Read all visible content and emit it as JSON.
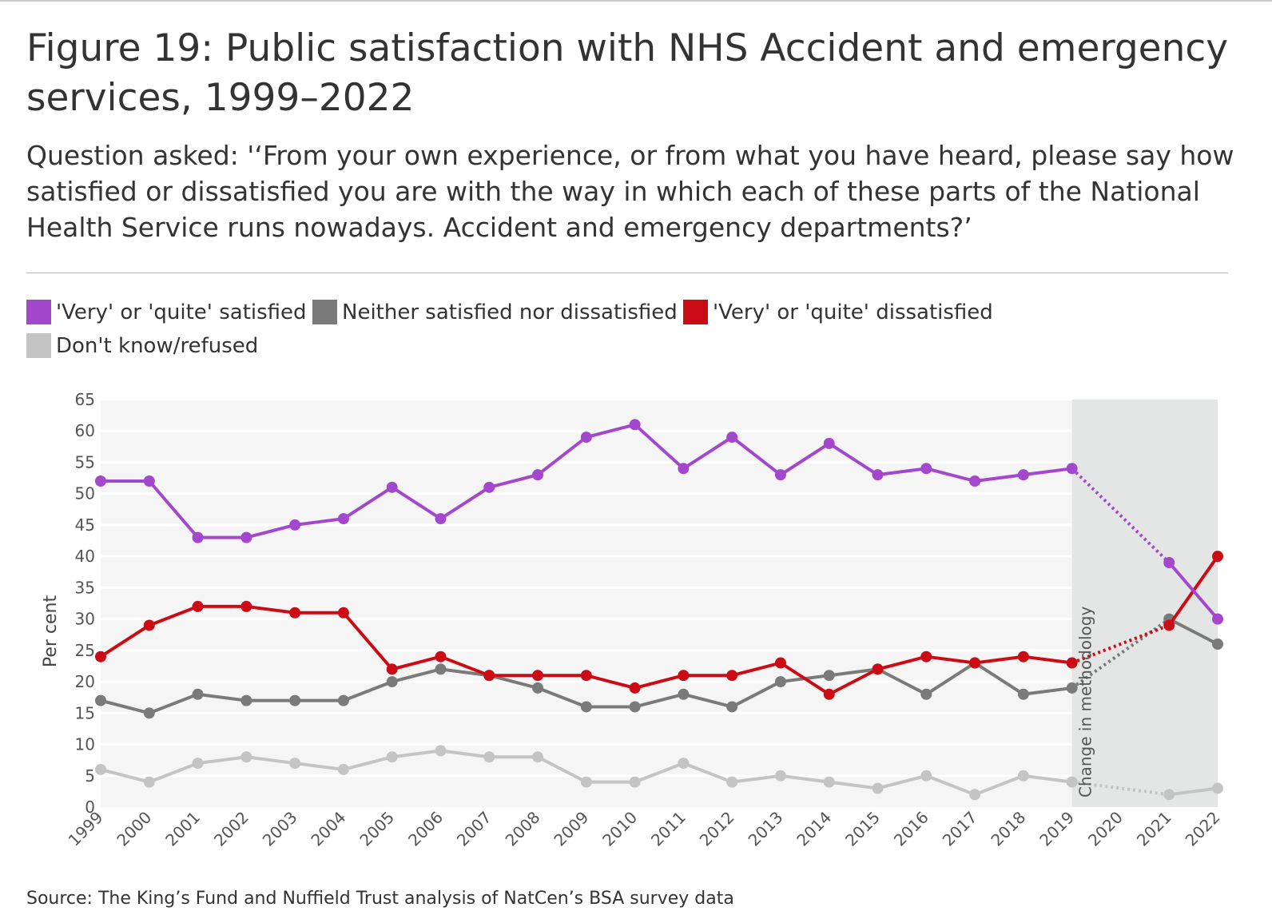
{
  "title": "Figure 19: Public satisfaction with NHS Accident and emergency services, 1999–2022",
  "subtitle": "Question asked: '‘From your own experience, or from what you have heard, please say how satisfied or dissatisfied you are with the way in which each of these parts of the National Health Service runs nowadays. Accident and emergency departments?’",
  "source": "Source: The King’s Fund and Nuffield Trust analysis of NatCen’s BSA survey data",
  "legend": [
    {
      "label": "'Very' or 'quite' satisfied",
      "color": "#a347cc"
    },
    {
      "label": "Neither satisfied nor dissatisfied",
      "color": "#7a7a7a"
    },
    {
      "label": "'Very' or 'quite' dissatisfied",
      "color": "#cc0c15"
    },
    {
      "label": "Don't know/refused",
      "color": "#c4c4c4"
    }
  ],
  "chart_data": {
    "type": "line",
    "title": "Figure 19: Public satisfaction with NHS Accident and emergency services, 1999–2022",
    "xlabel": "",
    "ylabel": "Per cent",
    "ylim": [
      0,
      65
    ],
    "yticks": [
      0,
      5,
      10,
      15,
      20,
      25,
      30,
      35,
      40,
      45,
      50,
      55,
      60,
      65
    ],
    "categories": [
      "1999",
      "2000",
      "2001",
      "2002",
      "2003",
      "2004",
      "2005",
      "2006",
      "2007",
      "2008",
      "2009",
      "2010",
      "2011",
      "2012",
      "2013",
      "2014",
      "2015",
      "2016",
      "2017",
      "2018",
      "2019",
      "2020",
      "2021",
      "2022"
    ],
    "annotation": {
      "label": "Change in methodology",
      "from": "2019",
      "to": "2022"
    },
    "series": [
      {
        "name": "'Very' or 'quite' satisfied",
        "color": "#a347cc",
        "values": [
          52,
          52,
          43,
          43,
          45,
          46,
          51,
          46,
          51,
          53,
          59,
          61,
          54,
          59,
          53,
          58,
          53,
          54,
          52,
          53,
          54,
          null,
          39,
          30
        ]
      },
      {
        "name": "Neither satisfied nor dissatisfied",
        "color": "#7a7a7a",
        "values": [
          17,
          15,
          18,
          17,
          17,
          17,
          20,
          22,
          21,
          19,
          16,
          16,
          18,
          16,
          20,
          21,
          22,
          18,
          23,
          18,
          19,
          null,
          30,
          26
        ]
      },
      {
        "name": "'Very' or 'quite' dissatisfied",
        "color": "#cc0c15",
        "values": [
          24,
          29,
          32,
          32,
          31,
          31,
          22,
          24,
          21,
          21,
          21,
          19,
          21,
          21,
          23,
          18,
          22,
          24,
          23,
          24,
          23,
          null,
          29,
          40
        ]
      },
      {
        "name": "Don't know/refused",
        "color": "#c4c4c4",
        "values": [
          6,
          4,
          7,
          8,
          7,
          6,
          8,
          9,
          8,
          8,
          4,
          4,
          7,
          4,
          5,
          4,
          3,
          5,
          2,
          5,
          4,
          null,
          2,
          3
        ]
      }
    ]
  }
}
